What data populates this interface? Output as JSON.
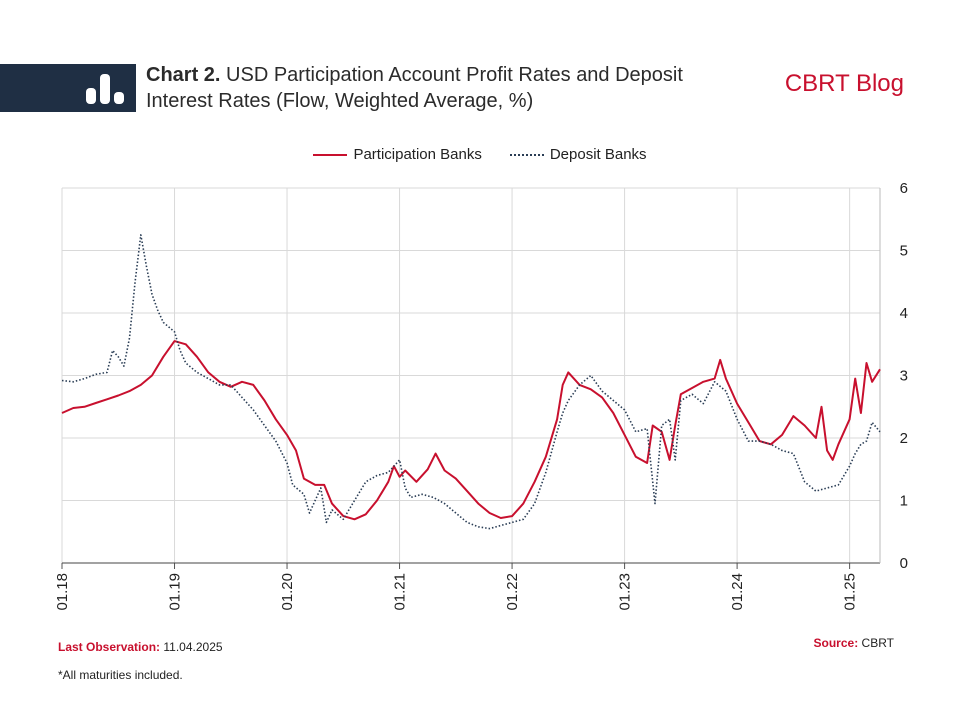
{
  "header": {
    "title_lead": "Chart 2.",
    "title_line1": "USD Participation Account Profit Rates and Deposit",
    "title_line2": "Interest Rates (Flow, Weighted Average, %)",
    "brand": "CBRT Blog",
    "banner_icon": "bar-chart-icon"
  },
  "footer": {
    "last_obs_label": "Last Observation:",
    "last_obs_value": "11.04.2025",
    "source_label": "Source:",
    "source_value": "CBRT",
    "note": "*All maturities included."
  },
  "colors": {
    "participation": "#c8102e",
    "deposit": "#2a3d55",
    "banner": "#1f2f44",
    "brand": "#c8102e"
  },
  "chart_data": {
    "type": "line",
    "title": "USD Participation Account Profit Rates and Deposit Interest Rates (Flow, Weighted Average, %)",
    "xlabel": "",
    "ylabel": "",
    "ylim": [
      0,
      6
    ],
    "xlim": [
      2018.0,
      2025.27
    ],
    "x_tick_labels": [
      "01.18",
      "01.19",
      "01.20",
      "01.21",
      "01.22",
      "01.23",
      "01.24",
      "01.25"
    ],
    "y_ticks": [
      0,
      1,
      2,
      3,
      4,
      5,
      6
    ],
    "y_axis_side": "right",
    "grid": true,
    "legend": "top-center",
    "series": [
      {
        "name": "Participation Banks",
        "style": "solid",
        "points": [
          [
            2018.0,
            2.4
          ],
          [
            2018.1,
            2.48
          ],
          [
            2018.2,
            2.5
          ],
          [
            2018.3,
            2.56
          ],
          [
            2018.4,
            2.62
          ],
          [
            2018.5,
            2.68
          ],
          [
            2018.6,
            2.75
          ],
          [
            2018.7,
            2.85
          ],
          [
            2018.8,
            3.0
          ],
          [
            2018.9,
            3.3
          ],
          [
            2019.0,
            3.55
          ],
          [
            2019.1,
            3.5
          ],
          [
            2019.2,
            3.3
          ],
          [
            2019.3,
            3.05
          ],
          [
            2019.4,
            2.9
          ],
          [
            2019.5,
            2.82
          ],
          [
            2019.6,
            2.9
          ],
          [
            2019.7,
            2.85
          ],
          [
            2019.8,
            2.6
          ],
          [
            2019.9,
            2.3
          ],
          [
            2020.0,
            2.05
          ],
          [
            2020.08,
            1.8
          ],
          [
            2020.15,
            1.35
          ],
          [
            2020.25,
            1.25
          ],
          [
            2020.33,
            1.25
          ],
          [
            2020.4,
            0.95
          ],
          [
            2020.5,
            0.75
          ],
          [
            2020.6,
            0.7
          ],
          [
            2020.7,
            0.78
          ],
          [
            2020.8,
            1.0
          ],
          [
            2020.9,
            1.3
          ],
          [
            2020.95,
            1.55
          ],
          [
            2021.0,
            1.38
          ],
          [
            2021.05,
            1.48
          ],
          [
            2021.15,
            1.3
          ],
          [
            2021.25,
            1.5
          ],
          [
            2021.32,
            1.75
          ],
          [
            2021.4,
            1.48
          ],
          [
            2021.5,
            1.35
          ],
          [
            2021.6,
            1.15
          ],
          [
            2021.7,
            0.95
          ],
          [
            2021.8,
            0.8
          ],
          [
            2021.9,
            0.72
          ],
          [
            2022.0,
            0.75
          ],
          [
            2022.1,
            0.95
          ],
          [
            2022.2,
            1.3
          ],
          [
            2022.3,
            1.7
          ],
          [
            2022.4,
            2.3
          ],
          [
            2022.45,
            2.85
          ],
          [
            2022.5,
            3.05
          ],
          [
            2022.6,
            2.85
          ],
          [
            2022.7,
            2.78
          ],
          [
            2022.8,
            2.65
          ],
          [
            2022.9,
            2.4
          ],
          [
            2023.0,
            2.05
          ],
          [
            2023.1,
            1.7
          ],
          [
            2023.2,
            1.6
          ],
          [
            2023.25,
            2.2
          ],
          [
            2023.33,
            2.1
          ],
          [
            2023.4,
            1.65
          ],
          [
            2023.45,
            2.2
          ],
          [
            2023.5,
            2.7
          ],
          [
            2023.6,
            2.8
          ],
          [
            2023.7,
            2.9
          ],
          [
            2023.8,
            2.95
          ],
          [
            2023.85,
            3.25
          ],
          [
            2023.9,
            2.95
          ],
          [
            2024.0,
            2.55
          ],
          [
            2024.1,
            2.25
          ],
          [
            2024.2,
            1.95
          ],
          [
            2024.3,
            1.9
          ],
          [
            2024.4,
            2.05
          ],
          [
            2024.5,
            2.35
          ],
          [
            2024.6,
            2.2
          ],
          [
            2024.7,
            2.0
          ],
          [
            2024.75,
            2.5
          ],
          [
            2024.8,
            1.8
          ],
          [
            2024.85,
            1.65
          ],
          [
            2024.9,
            1.9
          ],
          [
            2025.0,
            2.3
          ],
          [
            2025.05,
            2.95
          ],
          [
            2025.1,
            2.4
          ],
          [
            2025.15,
            3.2
          ],
          [
            2025.2,
            2.9
          ],
          [
            2025.27,
            3.1
          ]
        ]
      },
      {
        "name": "Deposit Banks",
        "style": "dotted",
        "points": [
          [
            2018.0,
            2.92
          ],
          [
            2018.1,
            2.9
          ],
          [
            2018.2,
            2.95
          ],
          [
            2018.3,
            3.02
          ],
          [
            2018.4,
            3.05
          ],
          [
            2018.45,
            3.4
          ],
          [
            2018.5,
            3.3
          ],
          [
            2018.55,
            3.15
          ],
          [
            2018.6,
            3.6
          ],
          [
            2018.65,
            4.5
          ],
          [
            2018.7,
            5.25
          ],
          [
            2018.75,
            4.75
          ],
          [
            2018.8,
            4.3
          ],
          [
            2018.85,
            4.05
          ],
          [
            2018.9,
            3.85
          ],
          [
            2019.0,
            3.7
          ],
          [
            2019.05,
            3.4
          ],
          [
            2019.1,
            3.2
          ],
          [
            2019.2,
            3.05
          ],
          [
            2019.3,
            2.95
          ],
          [
            2019.4,
            2.85
          ],
          [
            2019.5,
            2.85
          ],
          [
            2019.6,
            2.65
          ],
          [
            2019.7,
            2.45
          ],
          [
            2019.8,
            2.2
          ],
          [
            2019.9,
            1.95
          ],
          [
            2020.0,
            1.6
          ],
          [
            2020.05,
            1.25
          ],
          [
            2020.15,
            1.1
          ],
          [
            2020.2,
            0.8
          ],
          [
            2020.3,
            1.2
          ],
          [
            2020.35,
            0.65
          ],
          [
            2020.4,
            0.85
          ],
          [
            2020.5,
            0.7
          ],
          [
            2020.6,
            1.0
          ],
          [
            2020.7,
            1.3
          ],
          [
            2020.8,
            1.4
          ],
          [
            2020.9,
            1.45
          ],
          [
            2021.0,
            1.65
          ],
          [
            2021.05,
            1.2
          ],
          [
            2021.1,
            1.05
          ],
          [
            2021.2,
            1.1
          ],
          [
            2021.3,
            1.05
          ],
          [
            2021.4,
            0.95
          ],
          [
            2021.5,
            0.8
          ],
          [
            2021.6,
            0.65
          ],
          [
            2021.7,
            0.58
          ],
          [
            2021.8,
            0.55
          ],
          [
            2021.9,
            0.6
          ],
          [
            2022.0,
            0.65
          ],
          [
            2022.1,
            0.7
          ],
          [
            2022.2,
            0.95
          ],
          [
            2022.3,
            1.45
          ],
          [
            2022.4,
            2.1
          ],
          [
            2022.45,
            2.4
          ],
          [
            2022.5,
            2.6
          ],
          [
            2022.6,
            2.85
          ],
          [
            2022.7,
            3.0
          ],
          [
            2022.8,
            2.75
          ],
          [
            2022.9,
            2.6
          ],
          [
            2023.0,
            2.45
          ],
          [
            2023.1,
            2.1
          ],
          [
            2023.2,
            2.15
          ],
          [
            2023.27,
            0.95
          ],
          [
            2023.33,
            2.2
          ],
          [
            2023.4,
            2.3
          ],
          [
            2023.45,
            1.65
          ],
          [
            2023.5,
            2.6
          ],
          [
            2023.6,
            2.7
          ],
          [
            2023.7,
            2.55
          ],
          [
            2023.8,
            2.9
          ],
          [
            2023.9,
            2.75
          ],
          [
            2024.0,
            2.3
          ],
          [
            2024.1,
            1.95
          ],
          [
            2024.2,
            1.95
          ],
          [
            2024.3,
            1.9
          ],
          [
            2024.4,
            1.8
          ],
          [
            2024.5,
            1.75
          ],
          [
            2024.6,
            1.3
          ],
          [
            2024.7,
            1.15
          ],
          [
            2024.8,
            1.2
          ],
          [
            2024.9,
            1.25
          ],
          [
            2025.0,
            1.55
          ],
          [
            2025.05,
            1.75
          ],
          [
            2025.1,
            1.9
          ],
          [
            2025.15,
            1.95
          ],
          [
            2025.2,
            2.25
          ],
          [
            2025.27,
            2.1
          ]
        ]
      }
    ]
  }
}
